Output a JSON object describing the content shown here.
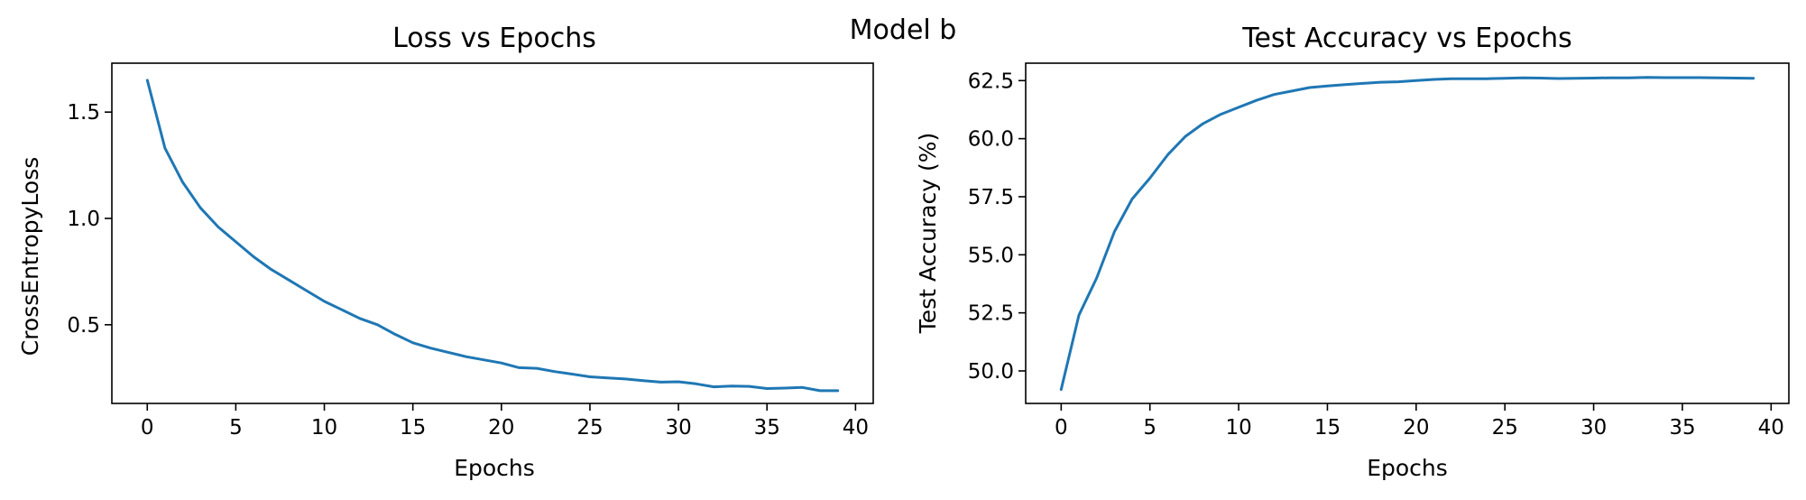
{
  "figure": {
    "suptitle": "Model b"
  },
  "chart_data": [
    {
      "type": "line",
      "title": "Loss vs Epochs",
      "xlabel": "Epochs",
      "ylabel": "CrossEntropyLoss",
      "xlim": [
        -2,
        41
      ],
      "ylim": [
        0.13,
        1.73
      ],
      "xticks": [
        0,
        5,
        10,
        15,
        20,
        25,
        30,
        35,
        40
      ],
      "yticks": [
        0.5,
        1.0,
        1.5
      ],
      "ytick_labels": [
        "0.5",
        "1.0",
        "1.5"
      ],
      "grid": false,
      "color": "#1f77b4",
      "series": [
        {
          "x": [
            0,
            1,
            2,
            3,
            4,
            5,
            6,
            7,
            8,
            9,
            10,
            11,
            12,
            13,
            14,
            15,
            16,
            17,
            18,
            19,
            20,
            21,
            22,
            23,
            24,
            25,
            26,
            27,
            28,
            29,
            30,
            31,
            32,
            33,
            34,
            35,
            36,
            37,
            38,
            39
          ],
          "values": [
            1.65,
            1.33,
            1.17,
            1.05,
            0.96,
            0.89,
            0.82,
            0.76,
            0.71,
            0.66,
            0.61,
            0.57,
            0.53,
            0.5,
            0.455,
            0.415,
            0.39,
            0.37,
            0.35,
            0.335,
            0.32,
            0.298,
            0.295,
            0.28,
            0.268,
            0.255,
            0.25,
            0.245,
            0.237,
            0.23,
            0.232,
            0.222,
            0.208,
            0.212,
            0.21,
            0.2,
            0.202,
            0.205,
            0.19,
            0.19
          ]
        }
      ]
    },
    {
      "type": "line",
      "title": "Test Accuracy vs Epochs",
      "xlabel": "Epochs",
      "ylabel": "Test Accuracy (%)",
      "xlim": [
        -2,
        41
      ],
      "ylim": [
        48.6,
        63.25
      ],
      "xticks": [
        0,
        5,
        10,
        15,
        20,
        25,
        30,
        35,
        40
      ],
      "yticks": [
        50.0,
        52.5,
        55.0,
        57.5,
        60.0,
        62.5
      ],
      "ytick_labels": [
        "50.0",
        "52.5",
        "55.0",
        "57.5",
        "60.0",
        "62.5"
      ],
      "grid": false,
      "color": "#1f77b4",
      "series": [
        {
          "x": [
            0,
            1,
            2,
            3,
            4,
            5,
            6,
            7,
            8,
            9,
            10,
            11,
            12,
            13,
            14,
            15,
            16,
            17,
            18,
            19,
            20,
            21,
            22,
            23,
            24,
            25,
            26,
            27,
            28,
            29,
            30,
            31,
            32,
            33,
            34,
            35,
            36,
            37,
            38,
            39
          ],
          "values": [
            49.2,
            52.4,
            54.0,
            56.0,
            57.4,
            58.3,
            59.3,
            60.1,
            60.65,
            61.05,
            61.35,
            61.65,
            61.9,
            62.05,
            62.2,
            62.27,
            62.33,
            62.38,
            62.43,
            62.45,
            62.5,
            62.55,
            62.58,
            62.58,
            62.58,
            62.6,
            62.62,
            62.61,
            62.59,
            62.6,
            62.61,
            62.62,
            62.62,
            62.64,
            62.63,
            62.63,
            62.63,
            62.62,
            62.61,
            62.6
          ]
        }
      ]
    }
  ]
}
